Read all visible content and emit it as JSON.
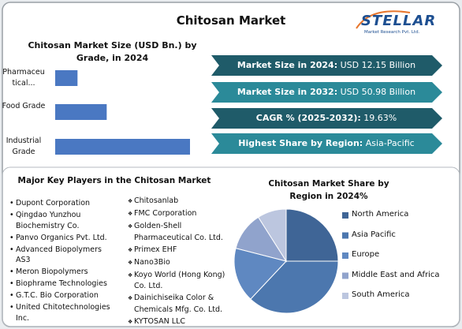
{
  "title": "Chitosan Market",
  "logo": {
    "name": "STELLAR",
    "tagline": "Market Research Pvt. Ltd."
  },
  "highlights": [
    {
      "label": "Market Size in 2024:",
      "value": "USD 12.15 Billion"
    },
    {
      "label": "Market Size in 2032:",
      "value": "USD 50.98 Billion"
    },
    {
      "label": "CAGR % (2025-2032):",
      "value": "19.63%"
    },
    {
      "label": "Highest Share by Region:",
      "value": "Asia-Pacific"
    }
  ],
  "key_players": {
    "title": "Major Key Players in the Chitosan Market",
    "column_1": [
      "Dupont Corporation",
      "Qingdao Yunzhou Biochemistry Co.",
      "Panvo Organics Pvt. Ltd.",
      "Advanced Biopolymers AS3",
      "Meron Biopolymers",
      "Biophrame Technologies",
      "G.T.C. Bio Corporation",
      "United Chitotechnologies Inc."
    ],
    "column_2": [
      "Chitosanlab",
      "FMC Corporation",
      "Golden-Shell Pharmaceutical Co. Ltd.",
      "Primex EHF",
      "Nano3Bio",
      "Koyo World (Hong Kong) Co. Ltd.",
      "Dainichiseika Color & Chemicals Mfg. Co. Ltd.",
      "KYTOSAN LLC"
    ]
  },
  "chart_data": [
    {
      "type": "bar",
      "orientation": "horizontal",
      "title": "Chitosan Market Size (USD Bn.) by Grade, in 2024",
      "categories": [
        "Pharmaceutical...",
        "Food Grade",
        "Industrial Grade"
      ],
      "values": [
        1.3,
        3.0,
        7.85
      ],
      "color": "#4a78c2"
    },
    {
      "type": "pie",
      "title": "Chitosan Market Share by Region in 2024%",
      "categories": [
        "North America",
        "Asia Pacific",
        "Europe",
        "Middle East and Africa",
        "South America"
      ],
      "values": [
        25,
        37,
        17,
        12,
        9
      ],
      "colors": [
        "#3f6596",
        "#4c77ae",
        "#5f88c1",
        "#90a3cc",
        "#bcc6df"
      ]
    }
  ]
}
